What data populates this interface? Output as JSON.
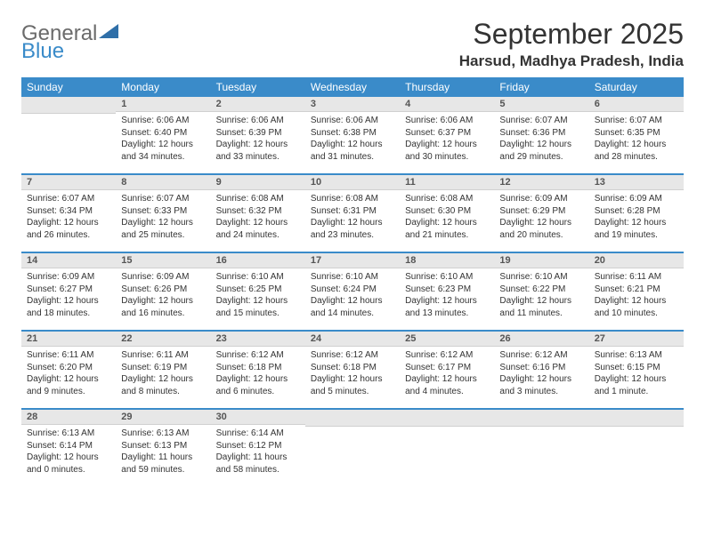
{
  "logo": {
    "text1": "General",
    "text2": "Blue"
  },
  "title": "September 2025",
  "location": "Harsud, Madhya Pradesh, India",
  "weekdays": [
    "Sunday",
    "Monday",
    "Tuesday",
    "Wednesday",
    "Thursday",
    "Friday",
    "Saturday"
  ],
  "colors": {
    "header_bg": "#3a8bc9",
    "daynum_bg": "#e7e7e7"
  },
  "weeks": [
    [
      {
        "n": "",
        "sr": "",
        "ss": "",
        "dl": ""
      },
      {
        "n": "1",
        "sr": "Sunrise: 6:06 AM",
        "ss": "Sunset: 6:40 PM",
        "dl": "Daylight: 12 hours and 34 minutes."
      },
      {
        "n": "2",
        "sr": "Sunrise: 6:06 AM",
        "ss": "Sunset: 6:39 PM",
        "dl": "Daylight: 12 hours and 33 minutes."
      },
      {
        "n": "3",
        "sr": "Sunrise: 6:06 AM",
        "ss": "Sunset: 6:38 PM",
        "dl": "Daylight: 12 hours and 31 minutes."
      },
      {
        "n": "4",
        "sr": "Sunrise: 6:06 AM",
        "ss": "Sunset: 6:37 PM",
        "dl": "Daylight: 12 hours and 30 minutes."
      },
      {
        "n": "5",
        "sr": "Sunrise: 6:07 AM",
        "ss": "Sunset: 6:36 PM",
        "dl": "Daylight: 12 hours and 29 minutes."
      },
      {
        "n": "6",
        "sr": "Sunrise: 6:07 AM",
        "ss": "Sunset: 6:35 PM",
        "dl": "Daylight: 12 hours and 28 minutes."
      }
    ],
    [
      {
        "n": "7",
        "sr": "Sunrise: 6:07 AM",
        "ss": "Sunset: 6:34 PM",
        "dl": "Daylight: 12 hours and 26 minutes."
      },
      {
        "n": "8",
        "sr": "Sunrise: 6:07 AM",
        "ss": "Sunset: 6:33 PM",
        "dl": "Daylight: 12 hours and 25 minutes."
      },
      {
        "n": "9",
        "sr": "Sunrise: 6:08 AM",
        "ss": "Sunset: 6:32 PM",
        "dl": "Daylight: 12 hours and 24 minutes."
      },
      {
        "n": "10",
        "sr": "Sunrise: 6:08 AM",
        "ss": "Sunset: 6:31 PM",
        "dl": "Daylight: 12 hours and 23 minutes."
      },
      {
        "n": "11",
        "sr": "Sunrise: 6:08 AM",
        "ss": "Sunset: 6:30 PM",
        "dl": "Daylight: 12 hours and 21 minutes."
      },
      {
        "n": "12",
        "sr": "Sunrise: 6:09 AM",
        "ss": "Sunset: 6:29 PM",
        "dl": "Daylight: 12 hours and 20 minutes."
      },
      {
        "n": "13",
        "sr": "Sunrise: 6:09 AM",
        "ss": "Sunset: 6:28 PM",
        "dl": "Daylight: 12 hours and 19 minutes."
      }
    ],
    [
      {
        "n": "14",
        "sr": "Sunrise: 6:09 AM",
        "ss": "Sunset: 6:27 PM",
        "dl": "Daylight: 12 hours and 18 minutes."
      },
      {
        "n": "15",
        "sr": "Sunrise: 6:09 AM",
        "ss": "Sunset: 6:26 PM",
        "dl": "Daylight: 12 hours and 16 minutes."
      },
      {
        "n": "16",
        "sr": "Sunrise: 6:10 AM",
        "ss": "Sunset: 6:25 PM",
        "dl": "Daylight: 12 hours and 15 minutes."
      },
      {
        "n": "17",
        "sr": "Sunrise: 6:10 AM",
        "ss": "Sunset: 6:24 PM",
        "dl": "Daylight: 12 hours and 14 minutes."
      },
      {
        "n": "18",
        "sr": "Sunrise: 6:10 AM",
        "ss": "Sunset: 6:23 PM",
        "dl": "Daylight: 12 hours and 13 minutes."
      },
      {
        "n": "19",
        "sr": "Sunrise: 6:10 AM",
        "ss": "Sunset: 6:22 PM",
        "dl": "Daylight: 12 hours and 11 minutes."
      },
      {
        "n": "20",
        "sr": "Sunrise: 6:11 AM",
        "ss": "Sunset: 6:21 PM",
        "dl": "Daylight: 12 hours and 10 minutes."
      }
    ],
    [
      {
        "n": "21",
        "sr": "Sunrise: 6:11 AM",
        "ss": "Sunset: 6:20 PM",
        "dl": "Daylight: 12 hours and 9 minutes."
      },
      {
        "n": "22",
        "sr": "Sunrise: 6:11 AM",
        "ss": "Sunset: 6:19 PM",
        "dl": "Daylight: 12 hours and 8 minutes."
      },
      {
        "n": "23",
        "sr": "Sunrise: 6:12 AM",
        "ss": "Sunset: 6:18 PM",
        "dl": "Daylight: 12 hours and 6 minutes."
      },
      {
        "n": "24",
        "sr": "Sunrise: 6:12 AM",
        "ss": "Sunset: 6:18 PM",
        "dl": "Daylight: 12 hours and 5 minutes."
      },
      {
        "n": "25",
        "sr": "Sunrise: 6:12 AM",
        "ss": "Sunset: 6:17 PM",
        "dl": "Daylight: 12 hours and 4 minutes."
      },
      {
        "n": "26",
        "sr": "Sunrise: 6:12 AM",
        "ss": "Sunset: 6:16 PM",
        "dl": "Daylight: 12 hours and 3 minutes."
      },
      {
        "n": "27",
        "sr": "Sunrise: 6:13 AM",
        "ss": "Sunset: 6:15 PM",
        "dl": "Daylight: 12 hours and 1 minute."
      }
    ],
    [
      {
        "n": "28",
        "sr": "Sunrise: 6:13 AM",
        "ss": "Sunset: 6:14 PM",
        "dl": "Daylight: 12 hours and 0 minutes."
      },
      {
        "n": "29",
        "sr": "Sunrise: 6:13 AM",
        "ss": "Sunset: 6:13 PM",
        "dl": "Daylight: 11 hours and 59 minutes."
      },
      {
        "n": "30",
        "sr": "Sunrise: 6:14 AM",
        "ss": "Sunset: 6:12 PM",
        "dl": "Daylight: 11 hours and 58 minutes."
      },
      {
        "n": "",
        "sr": "",
        "ss": "",
        "dl": ""
      },
      {
        "n": "",
        "sr": "",
        "ss": "",
        "dl": ""
      },
      {
        "n": "",
        "sr": "",
        "ss": "",
        "dl": ""
      },
      {
        "n": "",
        "sr": "",
        "ss": "",
        "dl": ""
      }
    ]
  ]
}
